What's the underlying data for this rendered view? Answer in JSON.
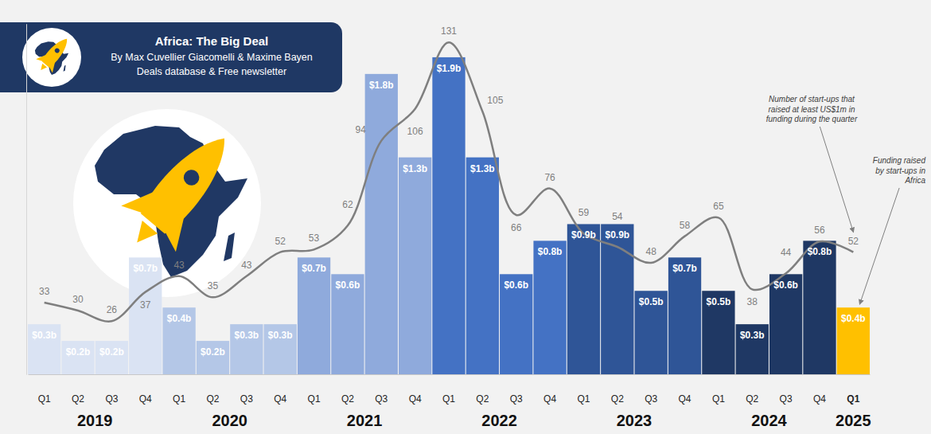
{
  "chart_data": {
    "type": "bar",
    "header": {
      "title": "Africa: The Big Deal",
      "subtitle": "By Max Cuvellier Giacomelli & Maxime Bayen",
      "tagline": "Deals database & Free newsletter"
    },
    "categories": [
      "Q1",
      "Q2",
      "Q3",
      "Q4",
      "Q1",
      "Q2",
      "Q3",
      "Q4",
      "Q1",
      "Q2",
      "Q3",
      "Q4",
      "Q1",
      "Q2",
      "Q3",
      "Q4",
      "Q1",
      "Q2",
      "Q3",
      "Q4",
      "Q1",
      "Q2",
      "Q3",
      "Q4",
      "Q1"
    ],
    "years": [
      "2019",
      "2020",
      "2021",
      "2022",
      "2023",
      "2024",
      "2025"
    ],
    "series": [
      {
        "name": "Funding raised by start-ups in Africa",
        "type": "bar",
        "values": [
          0.3,
          0.2,
          0.2,
          0.7,
          0.4,
          0.2,
          0.3,
          0.3,
          0.7,
          0.6,
          1.8,
          1.3,
          1.9,
          1.3,
          0.6,
          0.8,
          0.9,
          0.9,
          0.5,
          0.7,
          0.5,
          0.3,
          0.6,
          0.8,
          0.4
        ],
        "value_labels": [
          "$0.3b",
          "$0.2b",
          "$0.2b",
          "$0.7b",
          "$0.4b",
          "$0.2b",
          "$0.3b",
          "$0.3b",
          "$0.7b",
          "$0.6b",
          "$1.8b",
          "$1.3b",
          "$1.9b",
          "$1.3b",
          "$0.6b",
          "$0.8b",
          "$0.9b",
          "$0.9b",
          "$0.5b",
          "$0.7b",
          "$0.5b",
          "$0.3b",
          "$0.6b",
          "$0.8b",
          "$0.4b"
        ],
        "colors": [
          "#dae3f3",
          "#dae3f3",
          "#dae3f3",
          "#dae3f3",
          "#b4c7e7",
          "#b4c7e7",
          "#b4c7e7",
          "#b4c7e7",
          "#8faadc",
          "#8faadc",
          "#8faadc",
          "#8faadc",
          "#4472c4",
          "#4472c4",
          "#4472c4",
          "#4472c4",
          "#2f5597",
          "#2f5597",
          "#2f5597",
          "#2f5597",
          "#1f3864",
          "#1f3864",
          "#1f3864",
          "#1f3864",
          "#ffc000"
        ]
      },
      {
        "name": "Number of start-ups that raised at least US$1m in funding during the quarter",
        "type": "line",
        "axis": "y2",
        "color": "#7f7f7f",
        "values": [
          33,
          30,
          26,
          37,
          43,
          35,
          43,
          52,
          53,
          62,
          94,
          106,
          131,
          105,
          66,
          76,
          59,
          54,
          48,
          58,
          65,
          38,
          44,
          56,
          52
        ]
      }
    ],
    "ylim": [
      0,
      2.1
    ],
    "y2lim": [
      6,
      138
    ],
    "data_labels": true,
    "tick_labels": "x",
    "grid": false
  }
}
